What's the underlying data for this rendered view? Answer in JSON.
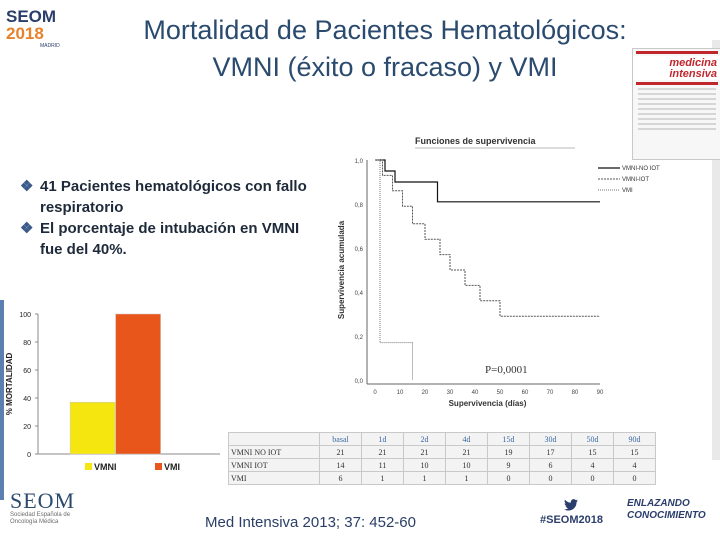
{
  "slide": {
    "title_line1": "Mortalidad de Pacientes Hematológicos:",
    "title_line2": "VMNI (éxito o fracaso) y VMI",
    "logo": {
      "name": "SEOM",
      "year": "2018",
      "city": "MADRID"
    },
    "bullets": [
      "41 Pacientes hematológicos con fallo respiratorio",
      "El porcentaje de intubación en VMNI fue del 40%."
    ],
    "bullet_icon": "diamond-bullet-icon",
    "journal": {
      "title": "medicina intensiva"
    },
    "reference": "Med Intensiva 2013; 37: 452-60",
    "hashtag": "#SEOM2018",
    "tagline_line1": "ENLAZANDO",
    "tagline_line2": "CONOCIMIENTO",
    "footer_logo_name": "SEOM",
    "footer_logo_sub": "Sociedad Española de Oncología Médica",
    "colors": {
      "title": "#2a4a6e",
      "vmni": "#f5e60f",
      "vmi": "#e8561c"
    }
  },
  "chart_data": [
    {
      "type": "bar",
      "categories": [
        "VMNI",
        "VMI"
      ],
      "values": [
        37,
        100
      ],
      "ylabel": "% MORTALIDAD",
      "ylim": [
        0,
        100
      ],
      "yticks": [
        0,
        20,
        40,
        60,
        80,
        100
      ],
      "colors": [
        "#f5e60f",
        "#e8561c"
      ],
      "legend": [
        "VMNI",
        "VMI"
      ]
    },
    {
      "type": "line",
      "title": "Funciones de supervivencia",
      "xlabel": "Supervivencia (días)",
      "ylabel": "Supervivencia acumulada",
      "xlim": [
        0,
        90
      ],
      "ylim": [
        0,
        1
      ],
      "xticks": [
        0,
        10,
        20,
        30,
        40,
        50,
        60,
        70,
        80,
        90
      ],
      "ytick_labels": [
        "0,0",
        "0,2",
        "0,4",
        "0,6",
        "0,8",
        "1,0"
      ],
      "annotation": "P=0,0001",
      "series": [
        {
          "name": "VMNI-NO IOT",
          "x": [
            0,
            4,
            4,
            8,
            8,
            25,
            25,
            90
          ],
          "y": [
            1.0,
            1.0,
            0.95,
            0.95,
            0.9,
            0.9,
            0.81,
            0.81
          ]
        },
        {
          "name": "VMNI-IOT",
          "x": [
            0,
            3,
            3,
            7,
            7,
            11,
            11,
            15,
            15,
            20,
            20,
            26,
            26,
            30,
            30,
            36,
            36,
            42,
            42,
            50,
            50,
            90
          ],
          "y": [
            1.0,
            1.0,
            0.93,
            0.93,
            0.86,
            0.86,
            0.79,
            0.79,
            0.71,
            0.71,
            0.64,
            0.64,
            0.57,
            0.57,
            0.5,
            0.5,
            0.43,
            0.43,
            0.36,
            0.36,
            0.29,
            0.29
          ]
        },
        {
          "name": "VMI",
          "x": [
            0,
            2,
            2,
            15,
            15
          ],
          "y": [
            1.0,
            1.0,
            0.17,
            0.17,
            0.0
          ]
        }
      ]
    }
  ],
  "table": {
    "header": [
      "",
      "basal",
      "1d",
      "2d",
      "4d",
      "15d",
      "30d",
      "50d",
      "90d"
    ],
    "rows": [
      [
        "VMNI NO IOT",
        "21",
        "21",
        "21",
        "21",
        "19",
        "17",
        "15",
        "15"
      ],
      [
        "VMNI IOT",
        "14",
        "11",
        "10",
        "10",
        "9",
        "6",
        "4",
        "4"
      ],
      [
        "VMI",
        "6",
        "1",
        "1",
        "1",
        "0",
        "0",
        "0",
        "0"
      ]
    ]
  }
}
